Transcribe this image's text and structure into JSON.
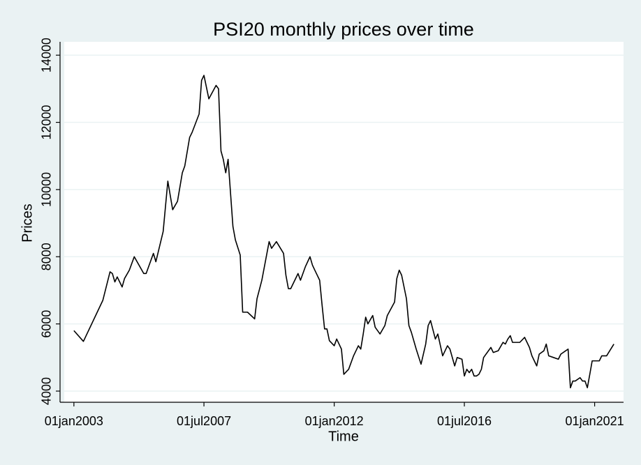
{
  "chart_data": {
    "type": "line",
    "title": "PSI20 monthly prices over time",
    "x_label": "Time",
    "y_label": "Prices",
    "color": "#000000",
    "grid": true,
    "x": [
      "2003-01-01",
      "2003-05-01",
      "2004-01-01",
      "2004-04-01",
      "2004-05-01",
      "2004-06-01",
      "2004-07-01",
      "2004-09-01",
      "2004-10-01",
      "2004-12-01",
      "2005-02-01",
      "2005-06-01",
      "2005-07-01",
      "2005-10-01",
      "2005-11-01",
      "2006-02-01",
      "2006-04-01",
      "2006-06-01",
      "2006-08-01",
      "2006-10-01",
      "2006-11-01",
      "2007-01-01",
      "2007-02-01",
      "2007-05-01",
      "2007-06-01",
      "2007-07-01",
      "2007-09-01",
      "2007-12-01",
      "2008-01-01",
      "2008-02-01",
      "2008-03-01",
      "2008-04-01",
      "2008-05-01",
      "2008-07-01",
      "2008-08-01",
      "2008-10-01",
      "2008-11-01",
      "2009-01-01",
      "2009-04-01",
      "2009-05-01",
      "2009-07-01",
      "2009-10-01",
      "2009-11-01",
      "2010-01-01",
      "2010-04-01",
      "2010-05-01",
      "2010-06-01",
      "2010-07-01",
      "2010-10-01",
      "2010-11-01",
      "2011-01-01",
      "2011-03-01",
      "2011-04-01",
      "2011-05-01",
      "2011-07-01",
      "2011-08-01",
      "2011-09-01",
      "2011-10-01",
      "2011-11-01",
      "2012-01-01",
      "2012-02-01",
      "2012-04-01",
      "2012-05-01",
      "2012-07-01",
      "2012-09-01",
      "2012-11-01",
      "2012-12-01",
      "2013-01-01",
      "2013-02-01",
      "2013-03-01",
      "2013-05-01",
      "2013-06-01",
      "2013-08-01",
      "2013-10-01",
      "2013-11-01",
      "2014-02-01",
      "2014-03-01",
      "2014-04-01",
      "2014-05-01",
      "2014-07-01",
      "2014-08-01",
      "2014-09-01",
      "2014-11-01",
      "2015-01-01",
      "2015-03-01",
      "2015-04-01",
      "2015-05-01",
      "2015-07-01",
      "2015-08-01",
      "2015-10-01",
      "2015-12-01",
      "2016-01-01",
      "2016-03-01",
      "2016-04-01",
      "2016-06-01",
      "2016-07-01",
      "2016-08-01",
      "2016-09-01",
      "2016-10-01",
      "2016-11-01",
      "2016-12-01",
      "2017-01-01",
      "2017-02-01",
      "2017-03-01",
      "2017-06-01",
      "2017-07-01",
      "2017-09-01",
      "2017-11-01",
      "2017-12-01",
      "2018-01-01",
      "2018-02-01",
      "2018-03-01",
      "2018-06-01",
      "2018-08-01",
      "2018-10-01",
      "2018-11-01",
      "2019-01-01",
      "2019-02-01",
      "2019-04-01",
      "2019-05-01",
      "2019-06-01",
      "2019-08-01",
      "2019-10-01",
      "2019-11-01",
      "2020-01-01",
      "2020-02-01",
      "2020-03-01",
      "2020-04-01",
      "2020-05-01",
      "2020-07-01",
      "2020-08-01",
      "2020-09-01",
      "2020-10-01",
      "2020-11-01",
      "2020-12-01",
      "2021-03-01",
      "2021-04-01",
      "2021-06-01",
      "2021-09-01"
    ],
    "values": [
      5800,
      5480,
      6700,
      7550,
      7500,
      7250,
      7400,
      7100,
      7350,
      7600,
      8000,
      7500,
      7500,
      8100,
      7850,
      8750,
      10250,
      9400,
      9650,
      10500,
      10700,
      11550,
      11700,
      12250,
      13250,
      13400,
      12700,
      13100,
      13000,
      11150,
      10900,
      10500,
      10900,
      8900,
      8500,
      8050,
      6350,
      6350,
      6150,
      6750,
      7300,
      8450,
      8250,
      8450,
      8100,
      7450,
      7050,
      7050,
      7500,
      7300,
      7700,
      8000,
      7750,
      7600,
      7300,
      6550,
      5850,
      5850,
      5500,
      5350,
      5550,
      5250,
      4500,
      4650,
      5050,
      5350,
      5250,
      5700,
      6200,
      6000,
      6250,
      5900,
      5700,
      5950,
      6250,
      6650,
      7350,
      7600,
      7450,
      6750,
      5950,
      5750,
      5250,
      4800,
      5400,
      5950,
      6100,
      5550,
      5700,
      5050,
      5350,
      5250,
      4750,
      5000,
      4950,
      4450,
      4650,
      4550,
      4650,
      4450,
      4450,
      4500,
      4650,
      5000,
      5300,
      5150,
      5200,
      5450,
      5400,
      5550,
      5650,
      5450,
      5450,
      5600,
      5300,
      5050,
      4750,
      5100,
      5200,
      5400,
      5050,
      5000,
      4950,
      5100,
      5200,
      5250,
      4100,
      4300,
      4300,
      4400,
      4300,
      4300,
      4100,
      4500,
      4900,
      4900,
      5050,
      5050,
      5400
    ],
    "xlim": [
      "2002-09-01",
      "2022-01-01"
    ],
    "xticks": [
      {
        "value": "2003-01-01",
        "label": "01jan2003"
      },
      {
        "value": "2007-07-01",
        "label": "01jul2007"
      },
      {
        "value": "2012-01-01",
        "label": "01jan2012"
      },
      {
        "value": "2016-07-01",
        "label": "01jul2016"
      },
      {
        "value": "2021-01-01",
        "label": "01jan2021"
      }
    ],
    "ylim": [
      3730,
      14190
    ],
    "yticks": [
      4000,
      6000,
      8000,
      10000,
      12000,
      14000
    ]
  }
}
